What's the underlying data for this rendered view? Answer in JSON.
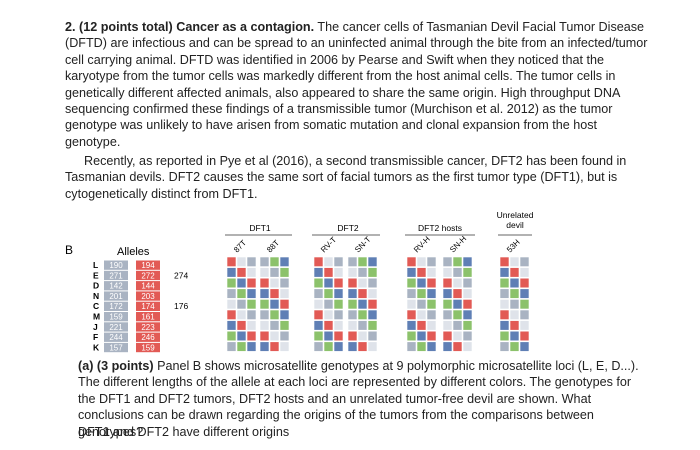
{
  "question": {
    "heading": "2. (12 points total) Cancer as a contagion.",
    "body": "The cancer cells of Tasmanian Devil Facial Tumor Disease (DFTD) are infectious and can be spread to an uninfected animal through the bite from an infected/tumor cell carrying animal. DFTD was identified in 2006 by Pearse and Swift when they noticed that the karyotype from the tumor cells was markedly different from the host animal cells. The tumor cells in genetically different affected animals, also appeared to share the same origin. High throughput DNA sequencing confirmed these findings of a transmissible tumor (Murchison et al. 2012) as the tumor genotype was unlikely to have arisen from somatic mutation and clonal expansion from the host genotype."
  },
  "paragraph2": "Recently, as reported in Pye et al (2016), a second transmissible cancer, DFT2 has been found in Tasmanian devils. DFT2 causes the same sort of facial tumors as the first tumor type (DFT1), but is cytogenetically distinct from DFT1.",
  "figure": {
    "panel": "B",
    "alleles_header": "Alleles",
    "loci": [
      "L",
      "E",
      "D",
      "N",
      "C",
      "M",
      "J",
      "F",
      "K"
    ],
    "alleles": [
      [
        "190",
        "194"
      ],
      [
        "271",
        "272",
        "274"
      ],
      [
        "142",
        "144"
      ],
      [
        "201",
        "203"
      ],
      [
        "172",
        "174",
        "176"
      ],
      [
        "159",
        "161"
      ],
      [
        "221",
        "223"
      ],
      [
        "244",
        "246"
      ],
      [
        "157",
        "159"
      ]
    ],
    "groups": [
      {
        "name": "DFT1",
        "samples": [
          "87T",
          "88T"
        ]
      },
      {
        "name": "DFT2",
        "samples": [
          "RV-T",
          "SN-T"
        ]
      },
      {
        "name": "DFT2 hosts",
        "samples": [
          "RV-H",
          "SN-H"
        ]
      },
      {
        "name": [
          "Unrelated",
          "devil"
        ],
        "samples": [
          "53H"
        ]
      }
    ]
  },
  "subquestion": {
    "label": "(a) (3 points)",
    "body": "Panel B shows microsatellite genotypes at 9 polymorphic microsatellite loci (L, E, D...). The different lengths of the allele at each loci are represented by different colors. The genotypes for the DFT1 and DFT2 tumors, DFT2 hosts and an unrelated tumor-free devil are shown. What conclusions can be drawn regarding the origins of the tumors from the comparisons between genotypes?"
  },
  "answer": "DFT1 and DFT2 have different origins"
}
